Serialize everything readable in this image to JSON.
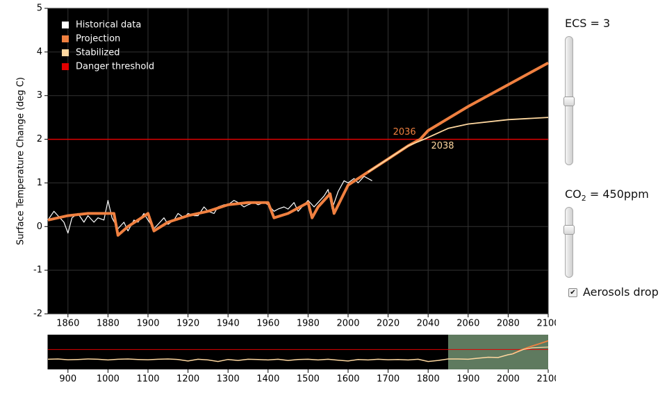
{
  "chart_data": [
    {
      "type": "line",
      "ylabel": "Surface Temperature Change (deg C)",
      "xlim": [
        1850,
        2100
      ],
      "ylim": [
        -2,
        5
      ],
      "xticks": [
        1860,
        1880,
        1900,
        1920,
        1940,
        1960,
        1980,
        2000,
        2020,
        2040,
        2060,
        2080,
        2100
      ],
      "yticks": [
        -2,
        -1,
        0,
        1,
        2,
        3,
        4,
        5
      ],
      "grid": true,
      "legend": "top-left",
      "series": [
        {
          "name": "Historical data",
          "color": "#ffffff",
          "width": 1.2,
          "x": [
            1850,
            1853,
            1855,
            1858,
            1860,
            1862,
            1865,
            1868,
            1870,
            1873,
            1875,
            1878,
            1880,
            1882,
            1885,
            1888,
            1890,
            1893,
            1895,
            1898,
            1900,
            1903,
            1905,
            1908,
            1910,
            1913,
            1915,
            1918,
            1920,
            1923,
            1925,
            1928,
            1930,
            1933,
            1935,
            1938,
            1940,
            1943,
            1945,
            1948,
            1950,
            1953,
            1955,
            1958,
            1960,
            1963,
            1965,
            1968,
            1970,
            1973,
            1975,
            1978,
            1980,
            1983,
            1985,
            1988,
            1990,
            1992,
            1995,
            1998,
            2000,
            2003,
            2005,
            2008,
            2010,
            2012
          ],
          "values": [
            0.15,
            0.35,
            0.25,
            0.1,
            -0.15,
            0.2,
            0.3,
            0.1,
            0.25,
            0.1,
            0.2,
            0.15,
            0.6,
            0.2,
            -0.05,
            0.1,
            -0.1,
            0.15,
            0.1,
            0.3,
            0.15,
            -0.05,
            0.05,
            0.2,
            0.05,
            0.15,
            0.3,
            0.2,
            0.3,
            0.25,
            0.25,
            0.45,
            0.35,
            0.3,
            0.45,
            0.5,
            0.5,
            0.6,
            0.55,
            0.45,
            0.5,
            0.55,
            0.5,
            0.55,
            0.5,
            0.35,
            0.4,
            0.45,
            0.4,
            0.55,
            0.35,
            0.5,
            0.6,
            0.45,
            0.55,
            0.7,
            0.85,
            0.4,
            0.8,
            1.05,
            1.0,
            1.1,
            1.0,
            1.15,
            1.1,
            1.05
          ]
        },
        {
          "name": "Projection",
          "color": "#f08040",
          "width": 4,
          "x": [
            1850,
            1860,
            1870,
            1880,
            1883,
            1885,
            1890,
            1895,
            1900,
            1903,
            1910,
            1920,
            1930,
            1940,
            1950,
            1960,
            1963,
            1970,
            1980,
            1982,
            1985,
            1991,
            1993,
            2000,
            2010,
            2020,
            2030,
            2036,
            2040,
            2060,
            2080,
            2100
          ],
          "values": [
            0.15,
            0.25,
            0.3,
            0.3,
            0.3,
            -0.2,
            0.0,
            0.15,
            0.3,
            -0.1,
            0.1,
            0.25,
            0.35,
            0.5,
            0.55,
            0.55,
            0.2,
            0.3,
            0.55,
            0.2,
            0.45,
            0.75,
            0.3,
            0.95,
            1.25,
            1.55,
            1.85,
            2.0,
            2.2,
            2.75,
            3.25,
            3.75
          ]
        },
        {
          "name": "Stabilized",
          "color": "#ffd8a0",
          "width": 1.8,
          "x": [
            2010,
            2020,
            2030,
            2038,
            2050,
            2060,
            2080,
            2100
          ],
          "values": [
            1.25,
            1.55,
            1.85,
            2.0,
            2.25,
            2.35,
            2.45,
            2.5
          ]
        }
      ],
      "threshold": {
        "name": "Danger threshold",
        "color": "#e00000",
        "value": 2
      },
      "annotations": [
        {
          "x": 2036,
          "y": 2,
          "color": "#f08040"
        },
        {
          "x": 2038,
          "y": 2,
          "color": "#ffd8a0"
        }
      ]
    },
    {
      "type": "line",
      "xlim": [
        850,
        2100
      ],
      "ylim": [
        -2,
        5
      ],
      "xticks": [
        900,
        1000,
        1100,
        1200,
        1300,
        1400,
        1500,
        1600,
        1700,
        1800,
        1900,
        2000,
        2100
      ],
      "highlight": [
        1850,
        2100
      ],
      "highlight_color": "#5f7a5f",
      "threshold": {
        "color": "#e00000",
        "value": 2
      },
      "series": [
        {
          "color": "#ffd8a0",
          "width": 1.5,
          "x": [
            850,
            875,
            900,
            925,
            950,
            975,
            1000,
            1025,
            1050,
            1075,
            1100,
            1125,
            1150,
            1175,
            1200,
            1225,
            1250,
            1275,
            1300,
            1325,
            1350,
            1375,
            1400,
            1425,
            1450,
            1475,
            1500,
            1525,
            1550,
            1575,
            1600,
            1625,
            1650,
            1675,
            1700,
            1725,
            1750,
            1775,
            1800,
            1825,
            1850,
            1875,
            1900,
            1925,
            1950,
            1975,
            2000,
            2010
          ],
          "values": [
            0.05,
            0.1,
            -0.05,
            0.0,
            0.1,
            0.05,
            -0.1,
            0.05,
            0.1,
            0.0,
            -0.05,
            0.05,
            0.1,
            0.0,
            -0.3,
            0.05,
            -0.1,
            -0.4,
            0.0,
            -0.2,
            0.05,
            0.0,
            -0.1,
            0.05,
            -0.2,
            0.0,
            0.05,
            -0.1,
            0.05,
            -0.15,
            -0.3,
            0.0,
            -0.1,
            0.05,
            -0.05,
            0.0,
            -0.1,
            0.05,
            -0.4,
            -0.2,
            0.1,
            0.1,
            0.05,
            0.25,
            0.45,
            0.4,
            0.95,
            1.1
          ]
        },
        {
          "color": "#f08040",
          "width": 1.8,
          "x": [
            2010,
            2030,
            2050,
            2075,
            2100
          ],
          "values": [
            1.1,
            1.85,
            2.45,
            3.1,
            3.75
          ]
        },
        {
          "color": "#ffd8a0",
          "width": 1.2,
          "x": [
            2010,
            2038,
            2060,
            2100
          ],
          "values": [
            1.1,
            2.0,
            2.35,
            2.5
          ]
        }
      ]
    }
  ],
  "controls": {
    "ecs": "ECS = 3",
    "co2": [
      "CO",
      "2",
      " = 450ppm"
    ],
    "aerosols": "Aerosols drop",
    "aerosols_checked": true
  }
}
